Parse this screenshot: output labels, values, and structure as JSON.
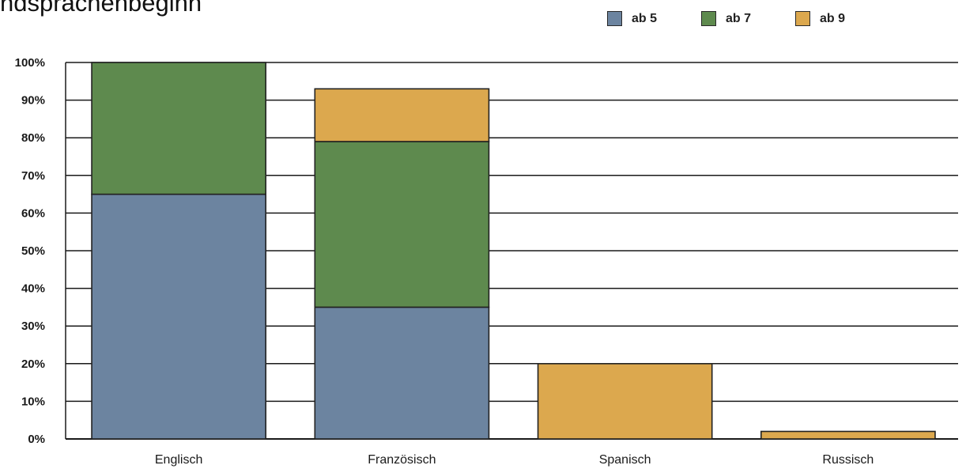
{
  "title": "ndsprachenbeginn",
  "chart_data": {
    "type": "bar",
    "stacked": true,
    "categories": [
      "Englisch",
      "Französisch",
      "Spanisch",
      "Russisch"
    ],
    "series": [
      {
        "name": "ab 5",
        "color": "#6c84a0",
        "values": [
          65,
          35,
          0,
          0
        ]
      },
      {
        "name": "ab 7",
        "color": "#5e8a4e",
        "values": [
          35,
          44,
          0,
          0
        ]
      },
      {
        "name": "ab 9",
        "color": "#dca84e",
        "values": [
          0,
          14,
          20,
          2
        ]
      }
    ],
    "ylim": [
      0,
      100
    ],
    "yticks": [
      "0%",
      "10%",
      "20%",
      "30%",
      "40%",
      "50%",
      "60%",
      "70%",
      "80%",
      "90%",
      "100%"
    ],
    "grid": true,
    "legend_position": "top-right"
  }
}
